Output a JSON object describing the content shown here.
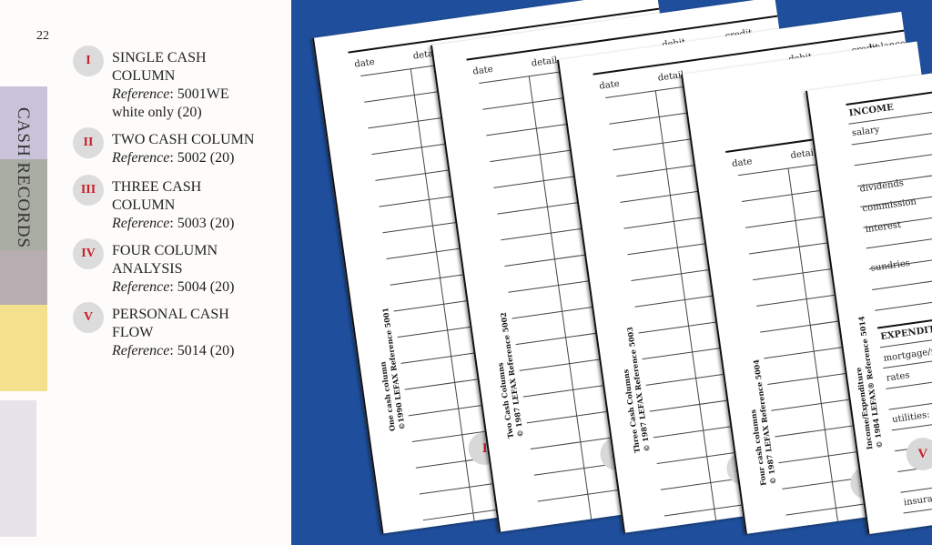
{
  "page_number": "22",
  "section_title": "CASH RECORDS",
  "items": [
    {
      "numeral": "I",
      "title": [
        "SINGLE CASH",
        "COLUMN"
      ],
      "ref_label": "Reference",
      "ref": ": 5001WE",
      "extra": "white only  (20)"
    },
    {
      "numeral": "II",
      "title": [
        "TWO CASH COLUMN"
      ],
      "ref_label": "Reference",
      "ref": ": 5002  (20)"
    },
    {
      "numeral": "III",
      "title": [
        "THREE CASH",
        "COLUMN"
      ],
      "ref_label": "Reference",
      "ref": ": 5003  (20)"
    },
    {
      "numeral": "IV",
      "title": [
        "FOUR COLUMN",
        "ANALYSIS"
      ],
      "ref_label": "Reference",
      "ref": ": 5004  (20)"
    },
    {
      "numeral": "V",
      "title": [
        "PERSONAL CASH",
        "FLOW"
      ],
      "ref_label": "Reference",
      "ref": ": 5014  (20)"
    }
  ],
  "sheets": [
    {
      "numeral": "I",
      "headers": [
        "date",
        "detail"
      ],
      "copy": [
        "One cash column",
        "©1990 LEFAX Reference 5001"
      ]
    },
    {
      "numeral": "II",
      "headers": [
        "date",
        "detail",
        "debit",
        "credit"
      ],
      "copy": [
        "Two Cash Columns",
        "© 1987 LEFAX Reference 5002"
      ]
    },
    {
      "numeral": "III",
      "headers": [
        "date",
        "detail",
        "debit",
        "credit",
        "balance"
      ],
      "copy": [
        "Three Cash Columns",
        "© 1987 LEFAX Reference 5003"
      ]
    },
    {
      "numeral": "IV",
      "headers": [
        "date",
        "detail"
      ],
      "copy": [
        "Four cash columns",
        "© 1987 LEFAX Reference 5004"
      ]
    },
    {
      "numeral": "V",
      "income_title": "INCOME",
      "income": [
        "salary",
        "dividends",
        "commission",
        "interest",
        "sundries"
      ],
      "expenditure_title": "EXPENDITURE",
      "expenditure": [
        "mortgage/rent",
        "rates",
        "utilities:",
        "insurance"
      ],
      "copy": [
        "Income/Expenditure",
        "© 1984 LEFAX® Reference 5014"
      ]
    }
  ],
  "colors": {
    "background": "#1f4f9c",
    "numeral": "#c8202a",
    "badge": "#dcdcdc"
  }
}
